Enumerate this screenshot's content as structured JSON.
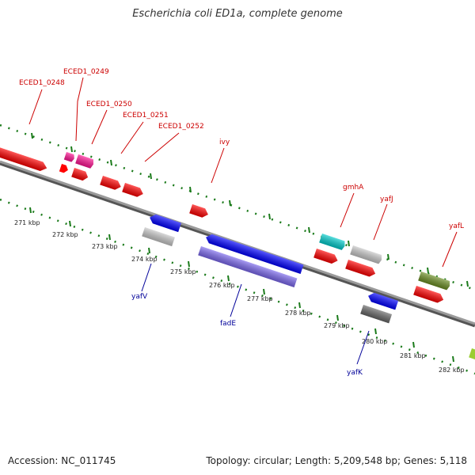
{
  "title": "Escherichia coli ED1a, complete genome",
  "footer": {
    "accession": "Accession: NC_011745",
    "info": "Topology: circular; Length: 5,209,548 bp; Genes: 5,118"
  },
  "colors": {
    "forward_label": "#cc0000",
    "reverse_label": "#000099",
    "backbone": "#808080",
    "tick": "#1a7a1a"
  },
  "kbp_labels": [
    "271 kbp",
    "272 kbp",
    "273 kbp",
    "274 kbp",
    "275 kbp",
    "276 kbp",
    "277 kbp",
    "278 kbp",
    "279 kbp",
    "280 kbp",
    "281 kbp",
    "282 kbp"
  ],
  "forward_genes": [
    {
      "id": "ECED1_0248",
      "label": "ECED1_0248",
      "color": "#ff0000"
    },
    {
      "id": "ECED1_0249",
      "label": "ECED1_0249",
      "color": "#ff1493"
    },
    {
      "id": "ECED1_0250",
      "label": "ECED1_0250",
      "color": "#ff1493"
    },
    {
      "id": "ECED1_0251",
      "label": "ECED1_0251",
      "color": "#ff0000"
    },
    {
      "id": "ECED1_0252",
      "label": "ECED1_0252",
      "color": "#ff0000"
    },
    {
      "id": "ivy",
      "label": "ivy",
      "color": "#ff0000"
    },
    {
      "id": "gmhA",
      "label": "gmhA",
      "color": "#00cccc"
    },
    {
      "id": "yafJ",
      "label": "yafJ",
      "color": "#c8c8c8"
    },
    {
      "id": "yafL",
      "label": "yafL",
      "color": "#6b8e23"
    }
  ],
  "reverse_genes": [
    {
      "id": "yafV",
      "label": "yafV",
      "color": "#0000ff"
    },
    {
      "id": "fadE",
      "label": "fadE",
      "color": "#0000ff"
    },
    {
      "id": "yafK",
      "label": "yafK",
      "color": "#0000ff"
    }
  ]
}
